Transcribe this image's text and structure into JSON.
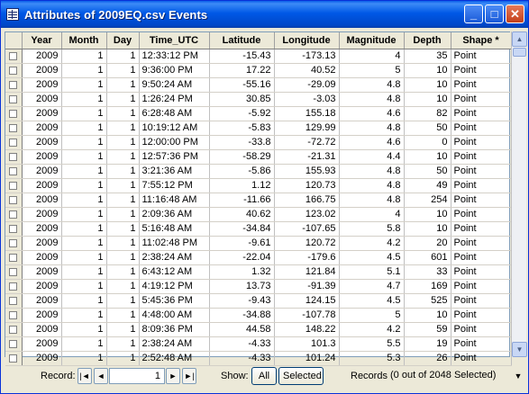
{
  "window": {
    "title": "Attributes of 2009EQ.csv Events",
    "minimize_label": "_",
    "maximize_label": "□",
    "close_label": "✕"
  },
  "columns": [
    "Year",
    "Month",
    "Day",
    "Time_UTC",
    "Latitude",
    "Longitude",
    "Magnitude",
    "Depth",
    "Shape *"
  ],
  "rows": [
    [
      "2009",
      "1",
      "1",
      "12:33:12 PM",
      "-15.43",
      "-173.13",
      "4",
      "35",
      "Point"
    ],
    [
      "2009",
      "1",
      "1",
      "9:36:00 PM",
      "17.22",
      "40.52",
      "5",
      "10",
      "Point"
    ],
    [
      "2009",
      "1",
      "1",
      "9:50:24 AM",
      "-55.16",
      "-29.09",
      "4.8",
      "10",
      "Point"
    ],
    [
      "2009",
      "1",
      "1",
      "1:26:24 PM",
      "30.85",
      "-3.03",
      "4.8",
      "10",
      "Point"
    ],
    [
      "2009",
      "1",
      "1",
      "6:28:48 AM",
      "-5.92",
      "155.18",
      "4.6",
      "82",
      "Point"
    ],
    [
      "2009",
      "1",
      "1",
      "10:19:12 AM",
      "-5.83",
      "129.99",
      "4.8",
      "50",
      "Point"
    ],
    [
      "2009",
      "1",
      "1",
      "12:00:00 PM",
      "-33.8",
      "-72.72",
      "4.6",
      "0",
      "Point"
    ],
    [
      "2009",
      "1",
      "1",
      "12:57:36 PM",
      "-58.29",
      "-21.31",
      "4.4",
      "10",
      "Point"
    ],
    [
      "2009",
      "1",
      "1",
      "3:21:36 AM",
      "-5.86",
      "155.93",
      "4.8",
      "50",
      "Point"
    ],
    [
      "2009",
      "1",
      "1",
      "7:55:12 PM",
      "1.12",
      "120.73",
      "4.8",
      "49",
      "Point"
    ],
    [
      "2009",
      "1",
      "1",
      "11:16:48 AM",
      "-11.66",
      "166.75",
      "4.8",
      "254",
      "Point"
    ],
    [
      "2009",
      "1",
      "1",
      "2:09:36 AM",
      "40.62",
      "123.02",
      "4",
      "10",
      "Point"
    ],
    [
      "2009",
      "1",
      "1",
      "5:16:48 AM",
      "-34.84",
      "-107.65",
      "5.8",
      "10",
      "Point"
    ],
    [
      "2009",
      "1",
      "1",
      "11:02:48 PM",
      "-9.61",
      "120.72",
      "4.2",
      "20",
      "Point"
    ],
    [
      "2009",
      "1",
      "1",
      "2:38:24 AM",
      "-22.04",
      "-179.6",
      "4.5",
      "601",
      "Point"
    ],
    [
      "2009",
      "1",
      "1",
      "6:43:12 AM",
      "1.32",
      "121.84",
      "5.1",
      "33",
      "Point"
    ],
    [
      "2009",
      "1",
      "1",
      "4:19:12 PM",
      "13.73",
      "-91.39",
      "4.7",
      "169",
      "Point"
    ],
    [
      "2009",
      "1",
      "1",
      "5:45:36 PM",
      "-9.43",
      "124.15",
      "4.5",
      "525",
      "Point"
    ],
    [
      "2009",
      "1",
      "1",
      "4:48:00 AM",
      "-34.88",
      "-107.78",
      "5",
      "10",
      "Point"
    ],
    [
      "2009",
      "1",
      "1",
      "8:09:36 PM",
      "44.58",
      "148.22",
      "4.2",
      "59",
      "Point"
    ],
    [
      "2009",
      "1",
      "1",
      "2:38:24 AM",
      "-4.33",
      "101.3",
      "5.5",
      "19",
      "Point"
    ],
    [
      "2009",
      "1",
      "1",
      "2:52:48 AM",
      "-4.33",
      "101.24",
      "5.3",
      "26",
      "Point"
    ]
  ],
  "nav": {
    "record_label": "Record:",
    "record_value": "1",
    "first_label": "|◄",
    "prev_label": "◄",
    "next_label": "►",
    "last_label": "►|",
    "show_label": "Show:",
    "all_label": "All",
    "selected_label": "Selected",
    "records_label": "Records",
    "selection_status": "(0 out of 2048 Selected)",
    "options_label": "▼"
  },
  "colors": {
    "titlebar": "#0058e6",
    "window_bg": "#ece9d8",
    "grid_bg": "#ffffff"
  }
}
